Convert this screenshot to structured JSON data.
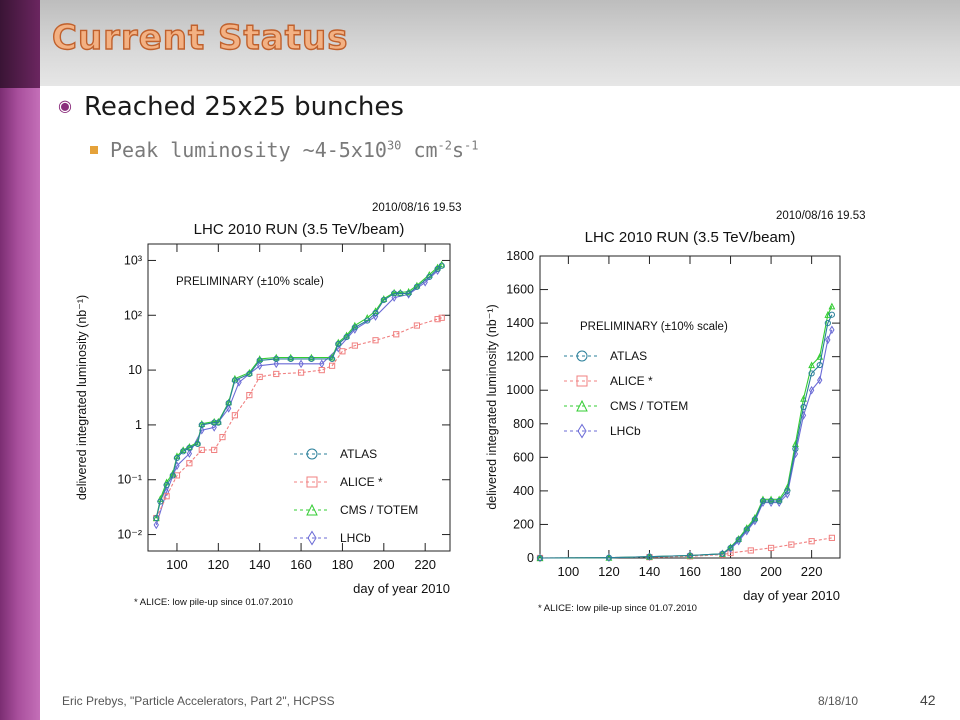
{
  "slide": {
    "title": "Current Status",
    "bullet1": "Reached 25x25 bunches",
    "bullet2_pre": "Peak luminosity ~4-5x10",
    "bullet2_exp": "30",
    "bullet2_unit1": " cm",
    "bullet2_exp2": "-2",
    "bullet2_unit2": "s",
    "bullet2_exp3": "-1",
    "footer_left": "Eric Prebys, \"Particle Accelerators, Part 2\", HCPSS",
    "footer_date": "8/18/10",
    "page_number": "42",
    "colors": {
      "title_fill": "#f3b183",
      "sidebar": "#a84f9c",
      "bullet_marker": "#e5a23a"
    }
  },
  "chart_data": [
    {
      "type": "line",
      "stamp": "2010/08/16    19.53",
      "title": "LHC 2010 RUN (3.5 TeV/beam)",
      "xlabel": "day of year 2010",
      "ylabel": "delivered integrated luminosity (nb⁻¹)",
      "xticks": [
        "100",
        "120",
        "140",
        "160",
        "180",
        "200",
        "220"
      ],
      "yticks": [
        "10⁻²",
        "10⁻¹",
        "1",
        "10",
        "10²",
        "10³"
      ],
      "xlim": [
        86,
        232
      ],
      "ylim_log10": [
        -2.3,
        3.3
      ],
      "yscale": "log",
      "annotation": "PRELIMINARY (±10% scale)",
      "footnote": "* ALICE: low pile-up since 01.07.2010",
      "legend": [
        "ATLAS",
        "ALICE *",
        "CMS / TOTEM",
        "LHCb"
      ],
      "legend_position": "bottom-right",
      "series": [
        {
          "name": "ATLAS",
          "color": "#2a7f9a",
          "x": [
            90,
            92,
            95,
            98,
            100,
            103,
            106,
            110,
            112,
            118,
            120,
            125,
            128,
            135,
            140,
            148,
            155,
            165,
            175,
            178,
            182,
            186,
            192,
            196,
            200,
            205,
            208,
            212,
            216,
            222,
            226,
            228
          ],
          "y": [
            0.02,
            0.04,
            0.08,
            0.12,
            0.25,
            0.33,
            0.38,
            0.45,
            1.0,
            1.1,
            1.1,
            2.5,
            6.5,
            8.5,
            15,
            16,
            16,
            16,
            16,
            30,
            40,
            60,
            80,
            110,
            190,
            250,
            250,
            250,
            330,
            500,
            700,
            800
          ]
        },
        {
          "name": "ALICE *",
          "color": "#f08080",
          "x": [
            90,
            95,
            100,
            106,
            112,
            118,
            122,
            128,
            135,
            140,
            148,
            160,
            170,
            175,
            180,
            186,
            196,
            206,
            216,
            226,
            228
          ],
          "y": [
            0.02,
            0.05,
            0.12,
            0.2,
            0.35,
            0.35,
            0.6,
            1.5,
            3.5,
            7.5,
            8.5,
            9,
            10,
            12,
            22,
            28,
            35,
            45,
            65,
            85,
            90
          ]
        },
        {
          "name": "CMS / TOTEM",
          "color": "#33cc33",
          "x": [
            90,
            92,
            95,
            98,
            100,
            103,
            106,
            110,
            112,
            118,
            120,
            125,
            128,
            135,
            140,
            148,
            155,
            165,
            175,
            178,
            182,
            186,
            192,
            196,
            200,
            205,
            208,
            212,
            216,
            222,
            226,
            228
          ],
          "y": [
            0.02,
            0.045,
            0.09,
            0.13,
            0.27,
            0.35,
            0.4,
            0.48,
            1.05,
            1.15,
            1.15,
            2.6,
            7,
            9,
            16,
            17,
            17,
            17,
            17,
            32,
            43,
            65,
            90,
            120,
            200,
            260,
            260,
            270,
            350,
            550,
            750,
            850
          ]
        },
        {
          "name": "LHCb",
          "color": "#6b6bd6",
          "x": [
            90,
            95,
            100,
            106,
            112,
            118,
            125,
            130,
            140,
            148,
            160,
            170,
            178,
            186,
            196,
            205,
            212,
            220,
            226
          ],
          "y": [
            0.015,
            0.06,
            0.18,
            0.3,
            0.8,
            0.9,
            2.0,
            6,
            12,
            13,
            13,
            13,
            25,
            55,
            95,
            210,
            240,
            400,
            650
          ]
        }
      ]
    },
    {
      "type": "line",
      "stamp": "2010/08/16    19.53",
      "title": "LHC 2010 RUN (3.5 TeV/beam)",
      "xlabel": "day of year 2010",
      "ylabel": "delivered integrated luminosity (nb⁻¹)",
      "xticks": [
        "100",
        "120",
        "140",
        "160",
        "180",
        "200",
        "220"
      ],
      "yticks": [
        "0",
        "200",
        "400",
        "600",
        "800",
        "1000",
        "1200",
        "1400",
        "1600",
        "1800"
      ],
      "xlim": [
        86,
        234
      ],
      "ylim": [
        0,
        1800
      ],
      "yscale": "linear",
      "annotation": "PRELIMINARY (±10% scale)",
      "footnote": "* ALICE: low pile-up since 01.07.2010",
      "legend": [
        "ATLAS",
        "ALICE *",
        "CMS / TOTEM",
        "LHCb"
      ],
      "legend_position": "top-left",
      "series": [
        {
          "name": "ATLAS",
          "color": "#2a7f9a",
          "x": [
            86,
            120,
            140,
            160,
            176,
            180,
            184,
            188,
            192,
            196,
            200,
            204,
            208,
            212,
            216,
            220,
            224,
            228,
            230
          ],
          "y": [
            0,
            2,
            8,
            15,
            25,
            60,
            110,
            170,
            230,
            340,
            340,
            340,
            400,
            650,
            900,
            1100,
            1150,
            1400,
            1450
          ]
        },
        {
          "name": "ALICE *",
          "color": "#f08080",
          "x": [
            86,
            140,
            160,
            176,
            180,
            190,
            200,
            210,
            220,
            230
          ],
          "y": [
            0,
            5,
            10,
            20,
            30,
            45,
            60,
            80,
            100,
            120
          ]
        },
        {
          "name": "CMS / TOTEM",
          "color": "#33cc33",
          "x": [
            86,
            120,
            140,
            160,
            176,
            180,
            184,
            188,
            192,
            196,
            200,
            204,
            208,
            212,
            216,
            220,
            224,
            228,
            230
          ],
          "y": [
            0,
            2,
            8,
            15,
            25,
            65,
            115,
            180,
            240,
            350,
            350,
            350,
            420,
            680,
            950,
            1150,
            1200,
            1450,
            1500
          ]
        },
        {
          "name": "LHCb",
          "color": "#6b6bd6",
          "x": [
            86,
            120,
            140,
            160,
            176,
            180,
            184,
            188,
            192,
            196,
            200,
            204,
            208,
            212,
            216,
            220,
            224,
            228,
            230
          ],
          "y": [
            0,
            2,
            8,
            15,
            25,
            55,
            100,
            160,
            220,
            330,
            330,
            330,
            380,
            620,
            850,
            1000,
            1060,
            1300,
            1360
          ]
        }
      ]
    }
  ]
}
